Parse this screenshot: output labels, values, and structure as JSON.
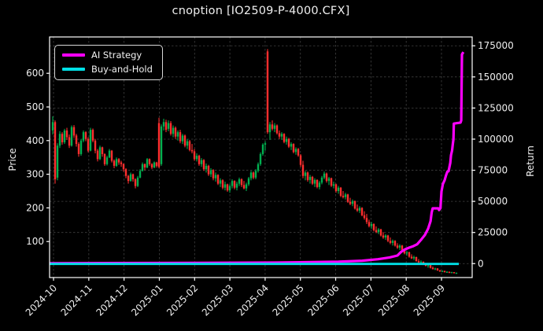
{
  "title": "cnoption [IO2509-P-4000.CFX]",
  "legend": {
    "items": [
      {
        "label": "AI Strategy",
        "color": "#ff00ff"
      },
      {
        "label": "Buy-and-Hold",
        "color": "#00e0e6"
      }
    ]
  },
  "axes": {
    "left": {
      "label": "Price",
      "ticks": [
        100,
        200,
        300,
        400,
        500,
        600
      ]
    },
    "right": {
      "label": "Return",
      "ticks": [
        0,
        25000,
        50000,
        75000,
        100000,
        125000,
        150000,
        175000
      ]
    },
    "x": {
      "tick_labels": [
        "2024-10",
        "2024-11",
        "2024-12",
        "2025-01",
        "2025-02",
        "2025-03",
        "2025-04",
        "2025-05",
        "2025-06",
        "2025-07",
        "2025-08",
        "2025-09"
      ]
    }
  },
  "chart_data": {
    "type": "candlestick",
    "title": "cnoption [IO2509-P-4000.CFX]",
    "grid": true,
    "legend_position": "upper left",
    "x_unit": "months since 2024-10-01",
    "xlim": [
      -0.112,
      11.87
    ],
    "price_ylim": [
      -7,
      708
    ],
    "return_ylim": [
      -11200,
      182100
    ],
    "candle_colors": {
      "up": "#00b050",
      "down": "#fe2e2e"
    },
    "candles": {
      "start_m": -0.0223,
      "pitch_m": 0.066934,
      "ohlc": [
        [
          430,
          472,
          418,
          455
        ],
        [
          455,
          460,
          272,
          285
        ],
        [
          290,
          392,
          282,
          385
        ],
        [
          385,
          428,
          378,
          420
        ],
        [
          420,
          425,
          388,
          395
        ],
        [
          395,
          435,
          390,
          430
        ],
        [
          430,
          438,
          402,
          410
        ],
        [
          410,
          418,
          378,
          385
        ],
        [
          385,
          445,
          382,
          440
        ],
        [
          440,
          446,
          408,
          415
        ],
        [
          415,
          420,
          382,
          390
        ],
        [
          390,
          395,
          352,
          360
        ],
        [
          360,
          405,
          355,
          400
        ],
        [
          400,
          430,
          395,
          425
        ],
        [
          425,
          428,
          398,
          405
        ],
        [
          405,
          410,
          365,
          370
        ],
        [
          370,
          438,
          368,
          432
        ],
        [
          432,
          436,
          395,
          400
        ],
        [
          400,
          405,
          362,
          370
        ],
        [
          370,
          375,
          338,
          345
        ],
        [
          345,
          385,
          342,
          380
        ],
        [
          380,
          382,
          352,
          360
        ],
        [
          360,
          362,
          325,
          330
        ],
        [
          330,
          355,
          326,
          350
        ],
        [
          350,
          375,
          348,
          370
        ],
        [
          370,
          372,
          335,
          340
        ],
        [
          340,
          344,
          318,
          325
        ],
        [
          325,
          350,
          322,
          345
        ],
        [
          345,
          348,
          328,
          335
        ],
        [
          335,
          340,
          322,
          330
        ],
        [
          330,
          332,
          308,
          315
        ],
        [
          315,
          318,
          288,
          295
        ],
        [
          295,
          298,
          272,
          280
        ],
        [
          280,
          305,
          278,
          300
        ],
        [
          300,
          302,
          278,
          285
        ],
        [
          285,
          288,
          258,
          265
        ],
        [
          265,
          295,
          262,
          290
        ],
        [
          290,
          315,
          288,
          310
        ],
        [
          310,
          335,
          308,
          330
        ],
        [
          330,
          332,
          312,
          320
        ],
        [
          320,
          348,
          318,
          345
        ],
        [
          345,
          347,
          325,
          330
        ],
        [
          330,
          333,
          315,
          320
        ],
        [
          320,
          338,
          318,
          335
        ],
        [
          335,
          337,
          320,
          325
        ],
        [
          452,
          468,
          318,
          322
        ],
        [
          330,
          448,
          325,
          442
        ],
        [
          442,
          465,
          430,
          455
        ],
        [
          455,
          462,
          425,
          432
        ],
        [
          435,
          460,
          428,
          452
        ],
        [
          452,
          458,
          415,
          420
        ],
        [
          420,
          445,
          410,
          438
        ],
        [
          438,
          442,
          405,
          412
        ],
        [
          412,
          430,
          400,
          425
        ],
        [
          425,
          432,
          392,
          398
        ],
        [
          398,
          420,
          390,
          415
        ],
        [
          415,
          418,
          380,
          385
        ],
        [
          385,
          405,
          375,
          398
        ],
        [
          398,
          402,
          368,
          372
        ],
        [
          372,
          390,
          362,
          368
        ],
        [
          368,
          375,
          340,
          345
        ],
        [
          345,
          362,
          338,
          355
        ],
        [
          355,
          358,
          325,
          330
        ],
        [
          330,
          348,
          322,
          342
        ],
        [
          342,
          345,
          310,
          315
        ],
        [
          315,
          332,
          305,
          325
        ],
        [
          325,
          328,
          295,
          300
        ],
        [
          300,
          318,
          292,
          312
        ],
        [
          312,
          315,
          282,
          288
        ],
        [
          288,
          305,
          278,
          298
        ],
        [
          298,
          300,
          268,
          272
        ],
        [
          272,
          288,
          262,
          282
        ],
        [
          282,
          285,
          255,
          260
        ],
        [
          260,
          278,
          252,
          270
        ],
        [
          270,
          272,
          248,
          252
        ],
        [
          252,
          270,
          245,
          265
        ],
        [
          265,
          285,
          258,
          280
        ],
        [
          280,
          282,
          255,
          260
        ],
        [
          260,
          278,
          252,
          272
        ],
        [
          272,
          290,
          265,
          285
        ],
        [
          285,
          288,
          262,
          268
        ],
        [
          268,
          280,
          255,
          258
        ],
        [
          258,
          275,
          250,
          270
        ],
        [
          270,
          292,
          265,
          288
        ],
        [
          288,
          310,
          282,
          305
        ],
        [
          305,
          308,
          285,
          290
        ],
        [
          290,
          315,
          285,
          310
        ],
        [
          310,
          335,
          305,
          330
        ],
        [
          330,
          365,
          325,
          360
        ],
        [
          360,
          392,
          355,
          388
        ],
        [
          388,
          398,
          370,
          392
        ],
        [
          665,
          672,
          420,
          425
        ],
        [
          425,
          455,
          402,
          448
        ],
        [
          448,
          460,
          430,
          435
        ],
        [
          435,
          452,
          425,
          445
        ],
        [
          445,
          448,
          418,
          422
        ],
        [
          422,
          430,
          405,
          412
        ],
        [
          412,
          425,
          402,
          420
        ],
        [
          420,
          422,
          392,
          396
        ],
        [
          396,
          412,
          388,
          405
        ],
        [
          405,
          408,
          378,
          382
        ],
        [
          382,
          395,
          372,
          390
        ],
        [
          390,
          392,
          362,
          366
        ],
        [
          366,
          380,
          358,
          375
        ],
        [
          375,
          378,
          352,
          356
        ],
        [
          356,
          360,
          322,
          328
        ],
        [
          328,
          340,
          288,
          295
        ],
        [
          295,
          310,
          282,
          305
        ],
        [
          305,
          308,
          278,
          283
        ],
        [
          283,
          298,
          272,
          292
        ],
        [
          292,
          295,
          268,
          272
        ],
        [
          272,
          288,
          262,
          283
        ],
        [
          283,
          285,
          258,
          262
        ],
        [
          262,
          280,
          255,
          275
        ],
        [
          275,
          295,
          270,
          290
        ],
        [
          290,
          308,
          285,
          302
        ],
        [
          302,
          305,
          275,
          280
        ],
        [
          280,
          292,
          268,
          288
        ],
        [
          288,
          290,
          262,
          266
        ],
        [
          266,
          278,
          258,
          270
        ],
        [
          270,
          272,
          245,
          250
        ],
        [
          250,
          265,
          242,
          260
        ],
        [
          260,
          262,
          232,
          236
        ],
        [
          236,
          250,
          228,
          232
        ],
        [
          232,
          245,
          225,
          240
        ],
        [
          240,
          242,
          215,
          218
        ],
        [
          218,
          230,
          208,
          212
        ],
        [
          212,
          225,
          205,
          220
        ],
        [
          220,
          222,
          195,
          198
        ],
        [
          198,
          210,
          188,
          192
        ],
        [
          192,
          205,
          185,
          200
        ],
        [
          200,
          202,
          175,
          178
        ],
        [
          178,
          190,
          165,
          170
        ],
        [
          170,
          182,
          152,
          158
        ],
        [
          158,
          165,
          142,
          146
        ],
        [
          146,
          158,
          138,
          152
        ],
        [
          152,
          154,
          130,
          134
        ],
        [
          134,
          145,
          125,
          128
        ],
        [
          128,
          140,
          122,
          136
        ],
        [
          136,
          138,
          115,
          118
        ],
        [
          118,
          128,
          108,
          112
        ],
        [
          112,
          122,
          105,
          118
        ],
        [
          118,
          120,
          98,
          102
        ],
        [
          102,
          112,
          92,
          96
        ],
        [
          96,
          106,
          88,
          102
        ],
        [
          102,
          104,
          85,
          88
        ],
        [
          88,
          95,
          78,
          82
        ],
        [
          82,
          92,
          75,
          88
        ],
        [
          88,
          90,
          72,
          75
        ],
        [
          75,
          78,
          62,
          65
        ],
        [
          65,
          72,
          58,
          68
        ],
        [
          68,
          70,
          52,
          55
        ],
        [
          55,
          62,
          48,
          50
        ],
        [
          50,
          58,
          45,
          54
        ],
        [
          54,
          55,
          40,
          42
        ],
        [
          42,
          48,
          36,
          38
        ],
        [
          38,
          44,
          34,
          40
        ],
        [
          40,
          41,
          30,
          32
        ],
        [
          32,
          36,
          26,
          28
        ],
        [
          28,
          32,
          22,
          30
        ],
        [
          30,
          31,
          20,
          22
        ],
        [
          22,
          26,
          17,
          18
        ],
        [
          18,
          22,
          15,
          20
        ],
        [
          20,
          21,
          13,
          14
        ],
        [
          14,
          16,
          10,
          11
        ],
        [
          11,
          14,
          9,
          13
        ],
        [
          13,
          13,
          8,
          9
        ],
        [
          9,
          12,
          7,
          10
        ],
        [
          10,
          11,
          6,
          7
        ],
        [
          7,
          10,
          6,
          9
        ],
        [
          9,
          9,
          5,
          6
        ],
        [
          6,
          8,
          4,
          7
        ]
      ]
    },
    "series": [
      {
        "name": "AI Strategy",
        "axis": "return",
        "color": "#ff00ff",
        "width": 3.2,
        "points": [
          [
            -0.11,
            300
          ],
          [
            3,
            500
          ],
          [
            6.3,
            800
          ],
          [
            8.08,
            1500
          ],
          [
            8.75,
            2300
          ],
          [
            9.2,
            3500
          ],
          [
            9.53,
            5000
          ],
          [
            9.75,
            6500
          ],
          [
            9.86,
            9500
          ],
          [
            9.97,
            11500
          ],
          [
            10.08,
            12800
          ],
          [
            10.2,
            14000
          ],
          [
            10.31,
            15500
          ],
          [
            10.42,
            19100
          ],
          [
            10.53,
            23000
          ],
          [
            10.62,
            28000
          ],
          [
            10.69,
            34000
          ],
          [
            10.72,
            41000
          ],
          [
            10.75,
            44400
          ],
          [
            10.91,
            44400
          ],
          [
            10.93,
            43000
          ],
          [
            10.97,
            44500
          ],
          [
            11.0,
            58000
          ],
          [
            11.04,
            64000
          ],
          [
            11.09,
            67000
          ],
          [
            11.13,
            71000
          ],
          [
            11.17,
            74000
          ],
          [
            11.2,
            74200
          ],
          [
            11.25,
            81000
          ],
          [
            11.27,
            87000
          ],
          [
            11.3,
            91000
          ],
          [
            11.32,
            96000
          ],
          [
            11.34,
            100000
          ],
          [
            11.35,
            112500
          ],
          [
            11.54,
            113300
          ],
          [
            11.56,
            115000
          ],
          [
            11.58,
            168000
          ],
          [
            11.62,
            170000
          ]
        ]
      },
      {
        "name": "Buy-and-Hold",
        "axis": "return",
        "color": "#00e0e6",
        "width": 2.8,
        "points": [
          [
            -0.112,
            -300
          ],
          [
            11.49,
            -300
          ]
        ]
      }
    ]
  }
}
